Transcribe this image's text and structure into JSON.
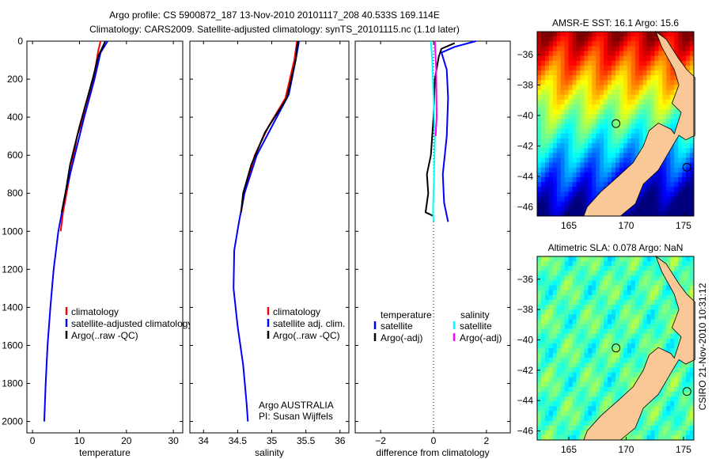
{
  "title": [
    "Argo profile: CS 5900872_187 13-Nov-2010 20101117_208 40.533S 169.114E",
    "Climatology: CARS2009. Satellite-adjusted climatology: synTS_20101115.nc (1.1d later)"
  ],
  "side_text": "CSIRO 21-Nov-2010 10:31:12",
  "colors": {
    "climatology": "#ff0000",
    "satellite": "#0000ff",
    "argo": "#000000",
    "sal_sat": "#00ffff",
    "sal_argo": "#ff00ff",
    "land": "#f9c896"
  },
  "chart_data": [
    {
      "type": "line",
      "xlabel": "temperature",
      "xlim": [
        -1.2,
        32
      ],
      "ylim": [
        0,
        2060
      ],
      "xticks": [
        0,
        10,
        20,
        30
      ],
      "yticks": [
        0,
        200,
        400,
        600,
        800,
        1000,
        1200,
        1400,
        1600,
        1800,
        2000
      ],
      "legend": [
        "climatology",
        "satellite-adjusted climatology",
        "Argo(..raw -QC)"
      ],
      "series": [
        {
          "name": "climatology",
          "color": "#ff0000",
          "points": [
            [
              14.5,
              0
            ],
            [
              14,
              50
            ],
            [
              13,
              200
            ],
            [
              11.5,
              350
            ],
            [
              9.5,
              500
            ],
            [
              8,
              700
            ],
            [
              6.5,
              900
            ],
            [
              6,
              1000
            ]
          ]
        },
        {
          "name": "satellite-adjusted climatology",
          "color": "#0000ff",
          "points": [
            [
              16,
              0
            ],
            [
              14.5,
              60
            ],
            [
              13.2,
              200
            ],
            [
              11,
              400
            ],
            [
              9,
              600
            ],
            [
              7,
              800
            ],
            [
              5.5,
              1000
            ],
            [
              4.5,
              1200
            ],
            [
              3.8,
              1400
            ],
            [
              3.2,
              1600
            ],
            [
              2.8,
              1800
            ],
            [
              2.5,
              2000
            ]
          ]
        },
        {
          "name": "Argo(..raw -QC)",
          "color": "#000000",
          "points": [
            [
              15.5,
              0
            ],
            [
              14,
              80
            ],
            [
              12.8,
              200
            ],
            [
              10,
              450
            ],
            [
              8,
              650
            ],
            [
              7,
              800
            ],
            [
              6.2,
              900
            ]
          ]
        }
      ]
    },
    {
      "type": "line",
      "xlabel": "salinity",
      "xlim": [
        33.8,
        36.13
      ],
      "ylim": [
        0,
        2060
      ],
      "xticks": [
        34,
        34.5,
        35,
        35.5,
        36
      ],
      "legend": [
        "climatology",
        "satellite adj. clim.",
        "Argo(..raw -QC)"
      ],
      "annotation": [
        "Argo AUSTRALIA",
        "PI: Susan Wijffels"
      ],
      "series": [
        {
          "name": "climatology",
          "color": "#ff0000",
          "points": [
            [
              35.37,
              0
            ],
            [
              35.33,
              100
            ],
            [
              35.2,
              300
            ],
            [
              34.95,
              450
            ],
            [
              34.75,
              600
            ],
            [
              34.6,
              800
            ],
            [
              34.55,
              900
            ]
          ]
        },
        {
          "name": "satellite adj. clim.",
          "color": "#0000ff",
          "points": [
            [
              35.4,
              0
            ],
            [
              35.35,
              100
            ],
            [
              35.25,
              280
            ],
            [
              35.0,
              450
            ],
            [
              34.78,
              600
            ],
            [
              34.6,
              800
            ],
            [
              34.52,
              950
            ],
            [
              34.45,
              1100
            ],
            [
              34.44,
              1300
            ],
            [
              34.5,
              1500
            ],
            [
              34.58,
              1700
            ],
            [
              34.63,
              1900
            ],
            [
              34.65,
              2000
            ]
          ]
        },
        {
          "name": "Argo(..raw -QC)",
          "color": "#000000",
          "points": [
            [
              35.38,
              0
            ],
            [
              35.35,
              100
            ],
            [
              35.22,
              300
            ],
            [
              34.9,
              480
            ],
            [
              34.7,
              650
            ],
            [
              34.58,
              800
            ],
            [
              34.55,
              900
            ]
          ]
        }
      ]
    },
    {
      "type": "line",
      "xlabel": "difference from climatology",
      "xlim": [
        -2.96,
        2.9
      ],
      "ylim": [
        0,
        2060
      ],
      "xticks": [
        -2,
        0,
        2
      ],
      "legend": {
        "temperature": "temperature",
        "salinity": "salinity",
        "items": [
          "satellite",
          "Argo(-adj)",
          "satellite",
          "Argo(-adj)"
        ]
      },
      "series": [
        {
          "name": "temperature satellite",
          "color": "#0000ff",
          "points": [
            [
              1.6,
              0
            ],
            [
              0.8,
              30
            ],
            [
              0.3,
              60
            ],
            [
              0.5,
              150
            ],
            [
              0.55,
              300
            ],
            [
              0.5,
              500
            ],
            [
              0.35,
              700
            ],
            [
              0.4,
              850
            ],
            [
              0.55,
              950
            ]
          ]
        },
        {
          "name": "temperature Argo(-adj)",
          "color": "#000000",
          "points": [
            [
              0.8,
              10
            ],
            [
              0.3,
              40
            ],
            [
              0.2,
              80
            ],
            [
              0.05,
              200
            ],
            [
              0,
              400
            ],
            [
              -0.1,
              600
            ],
            [
              -0.25,
              700
            ],
            [
              -0.2,
              800
            ],
            [
              -0.3,
              900
            ],
            [
              0,
              920
            ]
          ]
        },
        {
          "name": "salinity satellite",
          "color": "#00ffff",
          "points": [
            [
              -0.1,
              0
            ],
            [
              -0.05,
              100
            ],
            [
              0,
              300
            ],
            [
              0.05,
              500
            ],
            [
              0.02,
              700
            ],
            [
              -0.02,
              900
            ],
            [
              0,
              950
            ]
          ]
        },
        {
          "name": "salinity Argo(-adj)",
          "color": "#ff00ff",
          "points": [
            [
              0.05,
              0
            ],
            [
              0.1,
              150
            ],
            [
              0.12,
              400
            ],
            [
              0.08,
              500
            ]
          ]
        }
      ]
    },
    {
      "type": "heatmap",
      "title": "AMSR-E SST: 16.1 Argo: 15.6",
      "xticks": [
        165,
        170,
        175
      ],
      "yticks": [
        -36,
        -38,
        -40,
        -42,
        -44,
        -46
      ],
      "xlim": [
        162.24,
        175.9
      ],
      "ylim": [
        -46.6,
        -34.5
      ]
    },
    {
      "type": "heatmap",
      "title": "Altimetric SLA: 0.078 Argo: NaN",
      "xticks": [
        165,
        170,
        175
      ],
      "yticks": [
        -36,
        -38,
        -40,
        -42,
        -44,
        -46
      ],
      "xlim": [
        162.24,
        175.9
      ],
      "ylim": [
        -46.6,
        -34.5
      ]
    }
  ]
}
